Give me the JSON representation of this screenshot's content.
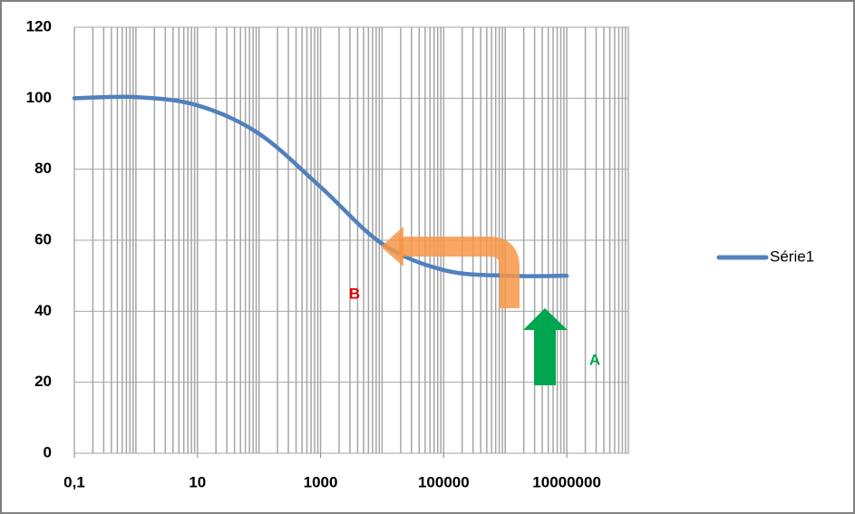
{
  "chart_data": {
    "type": "line",
    "x_scale": "log",
    "x": [
      0.1,
      1,
      10,
      100,
      1000,
      10000,
      100000,
      1000000,
      10000000
    ],
    "series": [
      {
        "name": "Série1",
        "color": "#4f81bd",
        "values": [
          100,
          100.3,
          98,
          90,
          75,
          59,
          51.6,
          50,
          50
        ]
      }
    ],
    "xlim": [
      0.1,
      100000000
    ],
    "xticks": [
      {
        "value": 0.1,
        "label": "0,1"
      },
      10,
      1000,
      100000,
      10000000
    ],
    "ylim": [
      0,
      120
    ],
    "yticks": [
      0,
      20,
      40,
      60,
      80,
      100,
      120
    ],
    "grid": true,
    "legend": "right",
    "annotations": [
      {
        "text": "B",
        "color": "#e00000"
      },
      {
        "text": "A",
        "color": "#00a550"
      }
    ]
  }
}
